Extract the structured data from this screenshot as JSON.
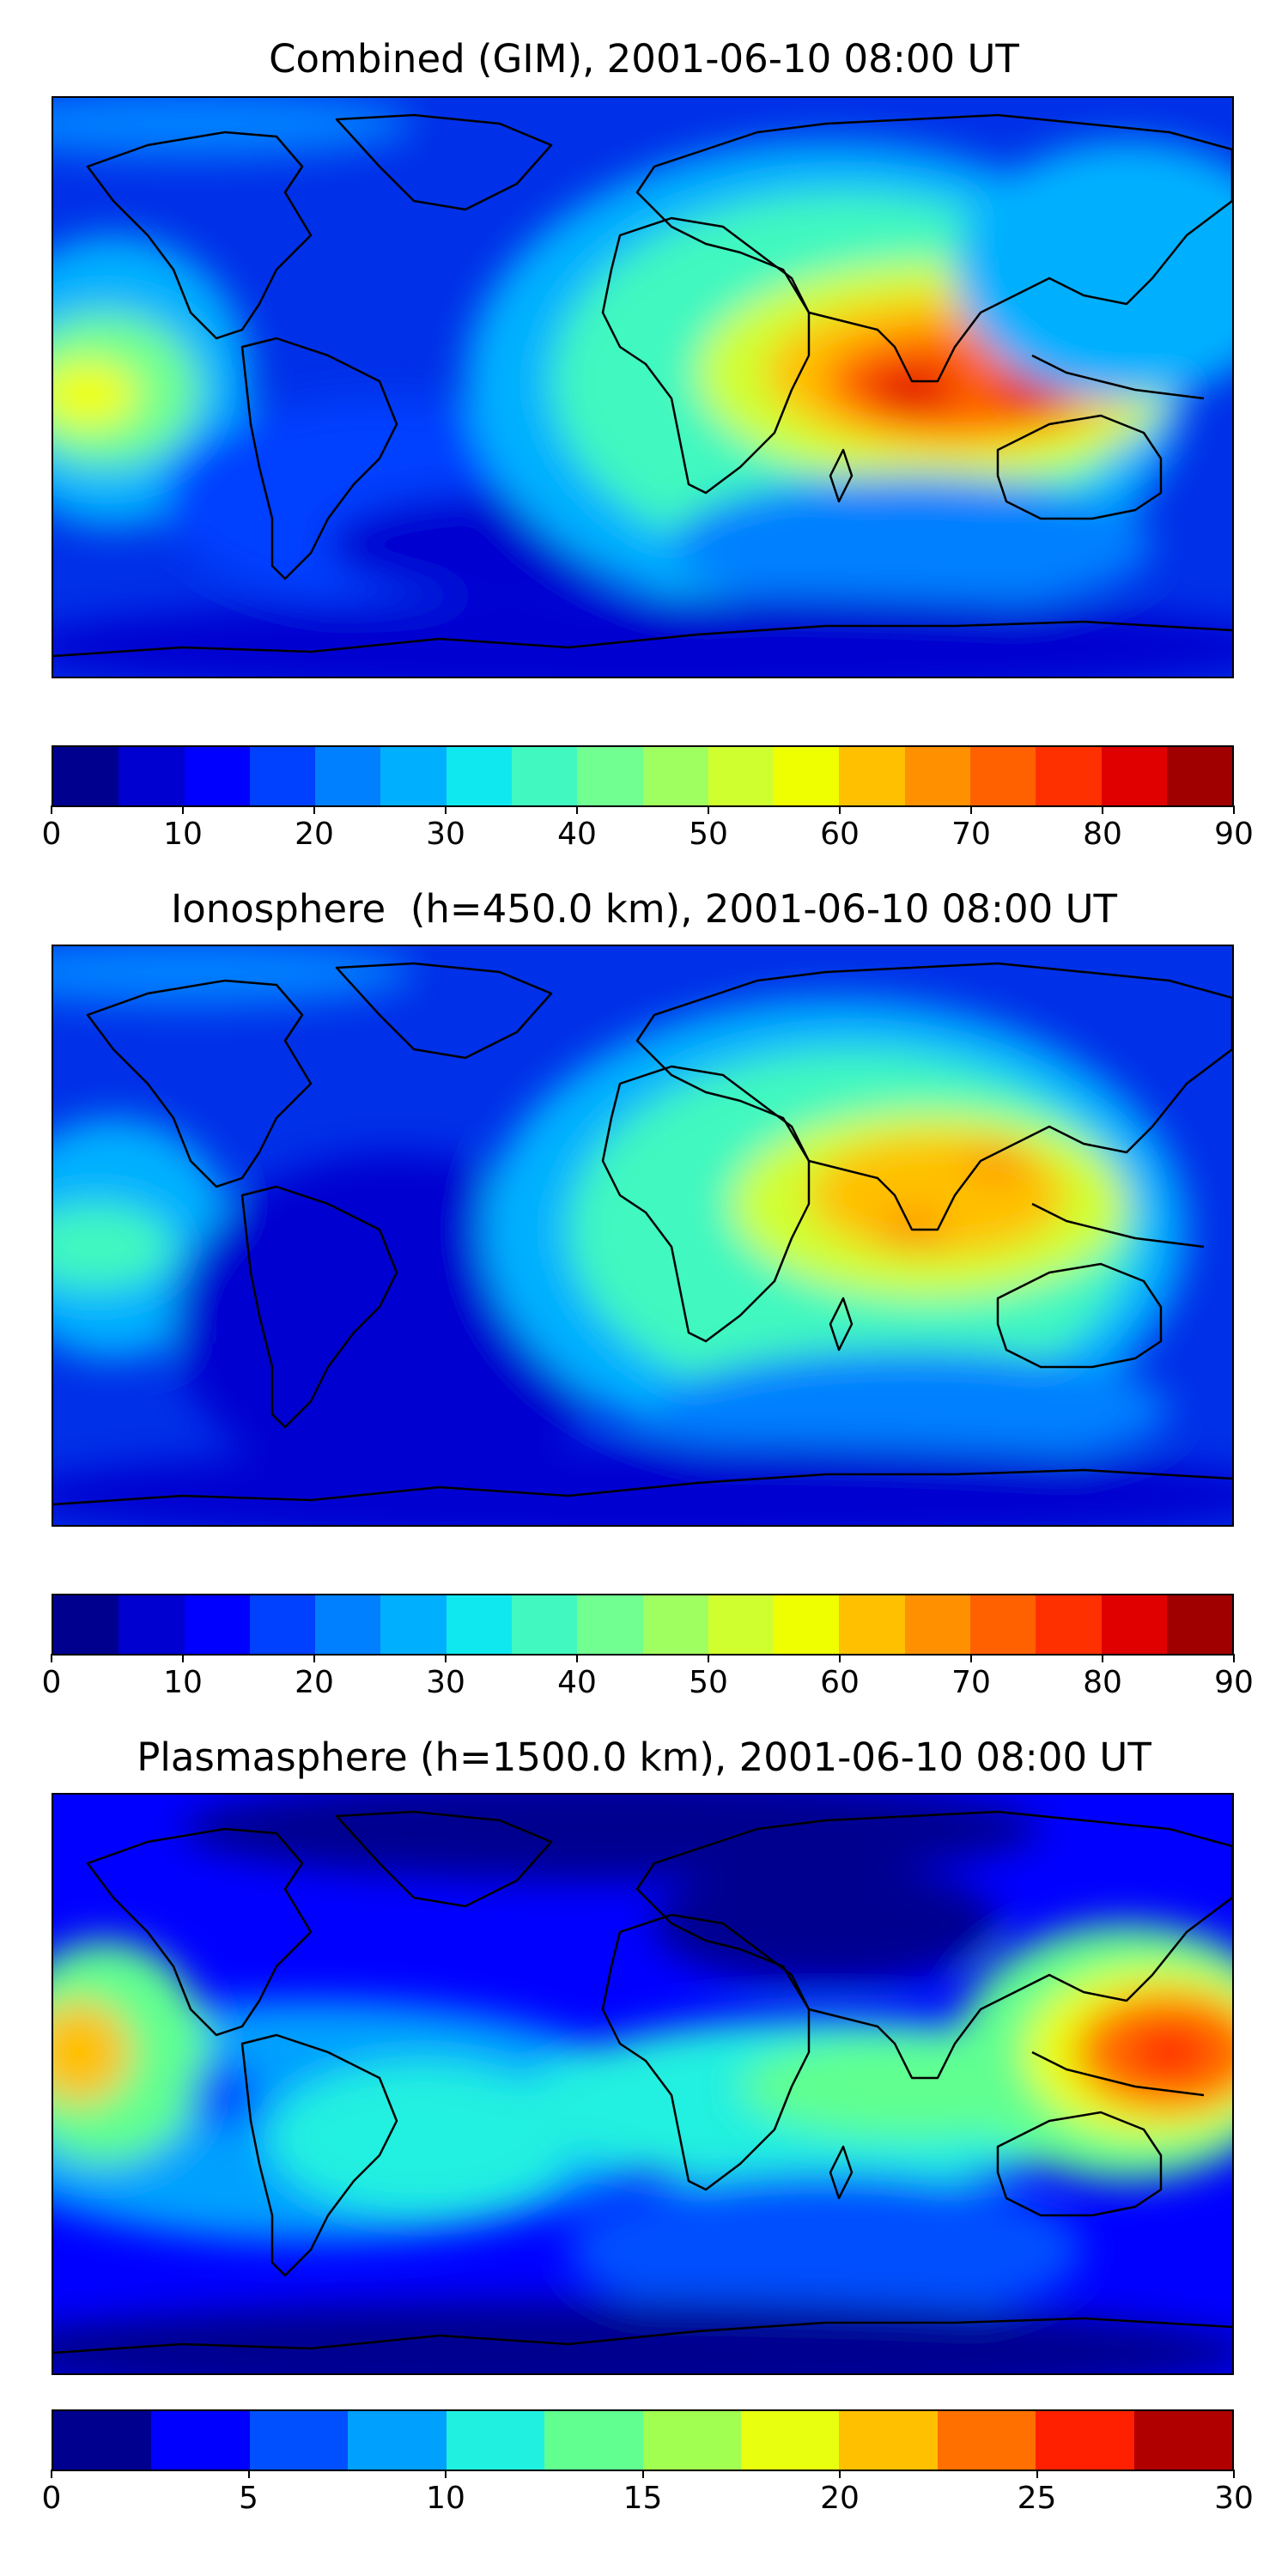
{
  "panels": [
    {
      "title": "Combined (GIM), 2001-06-10 08:00 UT",
      "colorbar": {
        "min": 0,
        "max": 90,
        "ticks": [
          "0",
          "10",
          "20",
          "30",
          "40",
          "50",
          "60",
          "70",
          "80",
          "90"
        ],
        "colors": [
          "#00008f",
          "#0000d0",
          "#0000ff",
          "#0040ff",
          "#0080ff",
          "#00b0ff",
          "#10e8f0",
          "#40f8c0",
          "#70ff90",
          "#a0ff60",
          "#d0ff30",
          "#f0ff00",
          "#ffc000",
          "#ff9000",
          "#ff6000",
          "#ff3000",
          "#e00000",
          "#a00000"
        ]
      }
    },
    {
      "title": "Ionosphere  (h=450.0 km), 2001-06-10 08:00 UT",
      "colorbar": {
        "min": 0,
        "max": 90,
        "ticks": [
          "0",
          "10",
          "20",
          "30",
          "40",
          "50",
          "60",
          "70",
          "80",
          "90"
        ],
        "colors": [
          "#00008f",
          "#0000d0",
          "#0000ff",
          "#0040ff",
          "#0080ff",
          "#00b0ff",
          "#10e8f0",
          "#40f8c0",
          "#70ff90",
          "#a0ff60",
          "#d0ff30",
          "#f0ff00",
          "#ffc000",
          "#ff9000",
          "#ff6000",
          "#ff3000",
          "#e00000",
          "#a00000"
        ]
      }
    },
    {
      "title": "Plasmasphere (h=1500.0 km), 2001-06-10 08:00 UT",
      "colorbar": {
        "min": 0,
        "max": 30,
        "ticks": [
          "0",
          "5",
          "10",
          "15",
          "20",
          "25",
          "30"
        ],
        "colors": [
          "#00008f",
          "#0000ff",
          "#0050ff",
          "#00a0ff",
          "#20f0e0",
          "#60ff90",
          "#a0ff50",
          "#e8ff10",
          "#ffc000",
          "#ff7000",
          "#ff2000",
          "#b00000"
        ]
      }
    }
  ]
}
